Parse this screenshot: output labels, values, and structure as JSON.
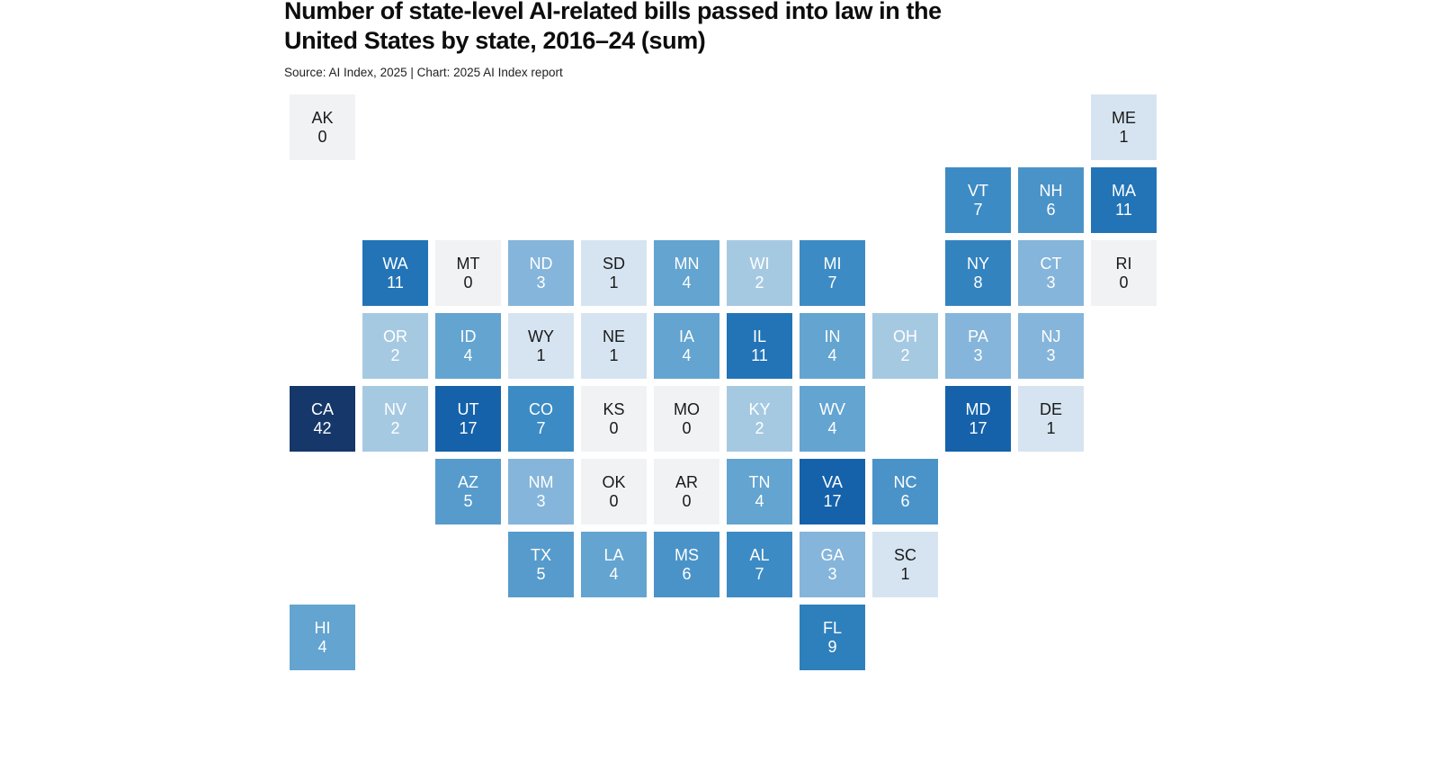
{
  "header": {
    "title_line1": "Number of state-level AI-related bills passed into law in the",
    "title_line2": "United States by state, 2016–24 (sum)",
    "source": "Source: AI Index, 2025 | Chart: 2025 AI Index report"
  },
  "chart_data": {
    "type": "heatmap",
    "variant": "us-state-tile-grid-map",
    "title": "Number of state-level AI-related bills passed into law in the United States by state, 2016–24 (sum)",
    "source": "Source: AI Index, 2025 | Chart: 2025 AI Index report",
    "value_meaning": "AI-related bills passed into law, 2016–24 sum",
    "legend": "none",
    "color_scale": {
      "0": "#f0f2f4",
      "1": "#d6e4f1",
      "2": "#a6c9e2",
      "3": "#85b5da",
      "4": "#63a4d0",
      "5": "#579bcc",
      "6": "#4a93c8",
      "7": "#3d8bc4",
      "8": "#3383bf",
      "9": "#2e80bd",
      "11": "#2274b7",
      "17": "#1562aa",
      "42": "#153769"
    },
    "text_colors": {
      "dark_text": "#1a1a1a",
      "light_text": "#ffffff",
      "dark_text_max_value": 1
    },
    "states": [
      {
        "abbr": "AK",
        "value": 0,
        "row": 1,
        "col": 1
      },
      {
        "abbr": "ME",
        "value": 1,
        "row": 1,
        "col": 12
      },
      {
        "abbr": "VT",
        "value": 7,
        "row": 2,
        "col": 10
      },
      {
        "abbr": "NH",
        "value": 6,
        "row": 2,
        "col": 11
      },
      {
        "abbr": "MA",
        "value": 11,
        "row": 2,
        "col": 12
      },
      {
        "abbr": "WA",
        "value": 11,
        "row": 3,
        "col": 2
      },
      {
        "abbr": "MT",
        "value": 0,
        "row": 3,
        "col": 3
      },
      {
        "abbr": "ND",
        "value": 3,
        "row": 3,
        "col": 4
      },
      {
        "abbr": "SD",
        "value": 1,
        "row": 3,
        "col": 5
      },
      {
        "abbr": "MN",
        "value": 4,
        "row": 3,
        "col": 6
      },
      {
        "abbr": "WI",
        "value": 2,
        "row": 3,
        "col": 7
      },
      {
        "abbr": "MI",
        "value": 7,
        "row": 3,
        "col": 8
      },
      {
        "abbr": "NY",
        "value": 8,
        "row": 3,
        "col": 10
      },
      {
        "abbr": "CT",
        "value": 3,
        "row": 3,
        "col": 11
      },
      {
        "abbr": "RI",
        "value": 0,
        "row": 3,
        "col": 12
      },
      {
        "abbr": "OR",
        "value": 2,
        "row": 4,
        "col": 2
      },
      {
        "abbr": "ID",
        "value": 4,
        "row": 4,
        "col": 3
      },
      {
        "abbr": "WY",
        "value": 1,
        "row": 4,
        "col": 4
      },
      {
        "abbr": "NE",
        "value": 1,
        "row": 4,
        "col": 5
      },
      {
        "abbr": "IA",
        "value": 4,
        "row": 4,
        "col": 6
      },
      {
        "abbr": "IL",
        "value": 11,
        "row": 4,
        "col": 7
      },
      {
        "abbr": "IN",
        "value": 4,
        "row": 4,
        "col": 8
      },
      {
        "abbr": "OH",
        "value": 2,
        "row": 4,
        "col": 9
      },
      {
        "abbr": "PA",
        "value": 3,
        "row": 4,
        "col": 10
      },
      {
        "abbr": "NJ",
        "value": 3,
        "row": 4,
        "col": 11
      },
      {
        "abbr": "CA",
        "value": 42,
        "row": 5,
        "col": 1
      },
      {
        "abbr": "NV",
        "value": 2,
        "row": 5,
        "col": 2
      },
      {
        "abbr": "UT",
        "value": 17,
        "row": 5,
        "col": 3
      },
      {
        "abbr": "CO",
        "value": 7,
        "row": 5,
        "col": 4
      },
      {
        "abbr": "KS",
        "value": 0,
        "row": 5,
        "col": 5
      },
      {
        "abbr": "MO",
        "value": 0,
        "row": 5,
        "col": 6
      },
      {
        "abbr": "KY",
        "value": 2,
        "row": 5,
        "col": 7
      },
      {
        "abbr": "WV",
        "value": 4,
        "row": 5,
        "col": 8
      },
      {
        "abbr": "MD",
        "value": 17,
        "row": 5,
        "col": 10
      },
      {
        "abbr": "DE",
        "value": 1,
        "row": 5,
        "col": 11
      },
      {
        "abbr": "AZ",
        "value": 5,
        "row": 6,
        "col": 3
      },
      {
        "abbr": "NM",
        "value": 3,
        "row": 6,
        "col": 4
      },
      {
        "abbr": "OK",
        "value": 0,
        "row": 6,
        "col": 5
      },
      {
        "abbr": "AR",
        "value": 0,
        "row": 6,
        "col": 6
      },
      {
        "abbr": "TN",
        "value": 4,
        "row": 6,
        "col": 7
      },
      {
        "abbr": "VA",
        "value": 17,
        "row": 6,
        "col": 8
      },
      {
        "abbr": "NC",
        "value": 6,
        "row": 6,
        "col": 9
      },
      {
        "abbr": "TX",
        "value": 5,
        "row": 7,
        "col": 4
      },
      {
        "abbr": "LA",
        "value": 4,
        "row": 7,
        "col": 5
      },
      {
        "abbr": "MS",
        "value": 6,
        "row": 7,
        "col": 6
      },
      {
        "abbr": "AL",
        "value": 7,
        "row": 7,
        "col": 7
      },
      {
        "abbr": "GA",
        "value": 3,
        "row": 7,
        "col": 8
      },
      {
        "abbr": "SC",
        "value": 1,
        "row": 7,
        "col": 9
      },
      {
        "abbr": "HI",
        "value": 4,
        "row": 8,
        "col": 1
      },
      {
        "abbr": "FL",
        "value": 9,
        "row": 8,
        "col": 8
      }
    ]
  }
}
